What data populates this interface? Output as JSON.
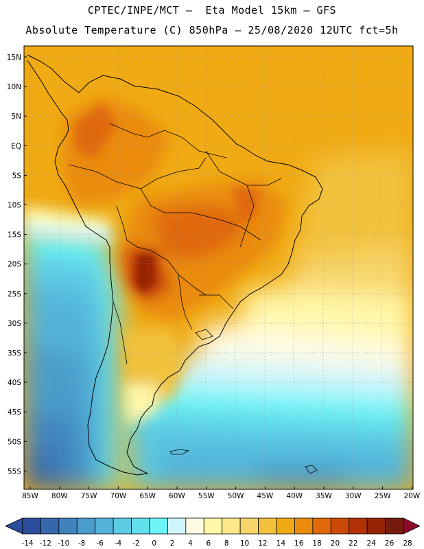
{
  "header": {
    "title_line1": "CPTEC/INPE/MCT –  Eta Model 15km – GFS",
    "title_line2": "Absolute Temperature (C) 850hPa – 25/08/2020 12UTC fct=5h"
  },
  "axes": {
    "lat_labels": [
      "15N",
      "10N",
      "5N",
      "EQ",
      "5S",
      "10S",
      "15S",
      "20S",
      "25S",
      "30S",
      "35S",
      "40S",
      "45S",
      "50S",
      "55S"
    ],
    "lon_labels": [
      "85W",
      "80W",
      "75W",
      "70W",
      "65W",
      "60W",
      "55W",
      "50W",
      "45W",
      "40W",
      "35W",
      "30W",
      "25W",
      "20W"
    ]
  },
  "colorbar": {
    "labels": [
      "-14",
      "-12",
      "-10",
      "-8",
      "-6",
      "-4",
      "-2",
      "0",
      "2",
      "4",
      "6",
      "8",
      "10",
      "12",
      "14",
      "16",
      "18",
      "20",
      "22",
      "24",
      "26",
      "28"
    ],
    "colors": [
      "#2b4b9b",
      "#3567aa",
      "#3f83bd",
      "#4a9cca",
      "#53b3d8",
      "#5ccbe4",
      "#64e0ec",
      "#6df5f7",
      "#cff4fb",
      "#fffbe4",
      "#fff7a8",
      "#fde98a",
      "#f7d56a",
      "#f2c23c",
      "#f0aa14",
      "#ea8b0d",
      "#e0690b",
      "#cc4a07",
      "#b23206",
      "#952406",
      "#741d0f",
      "#8a0a2a"
    ]
  }
}
